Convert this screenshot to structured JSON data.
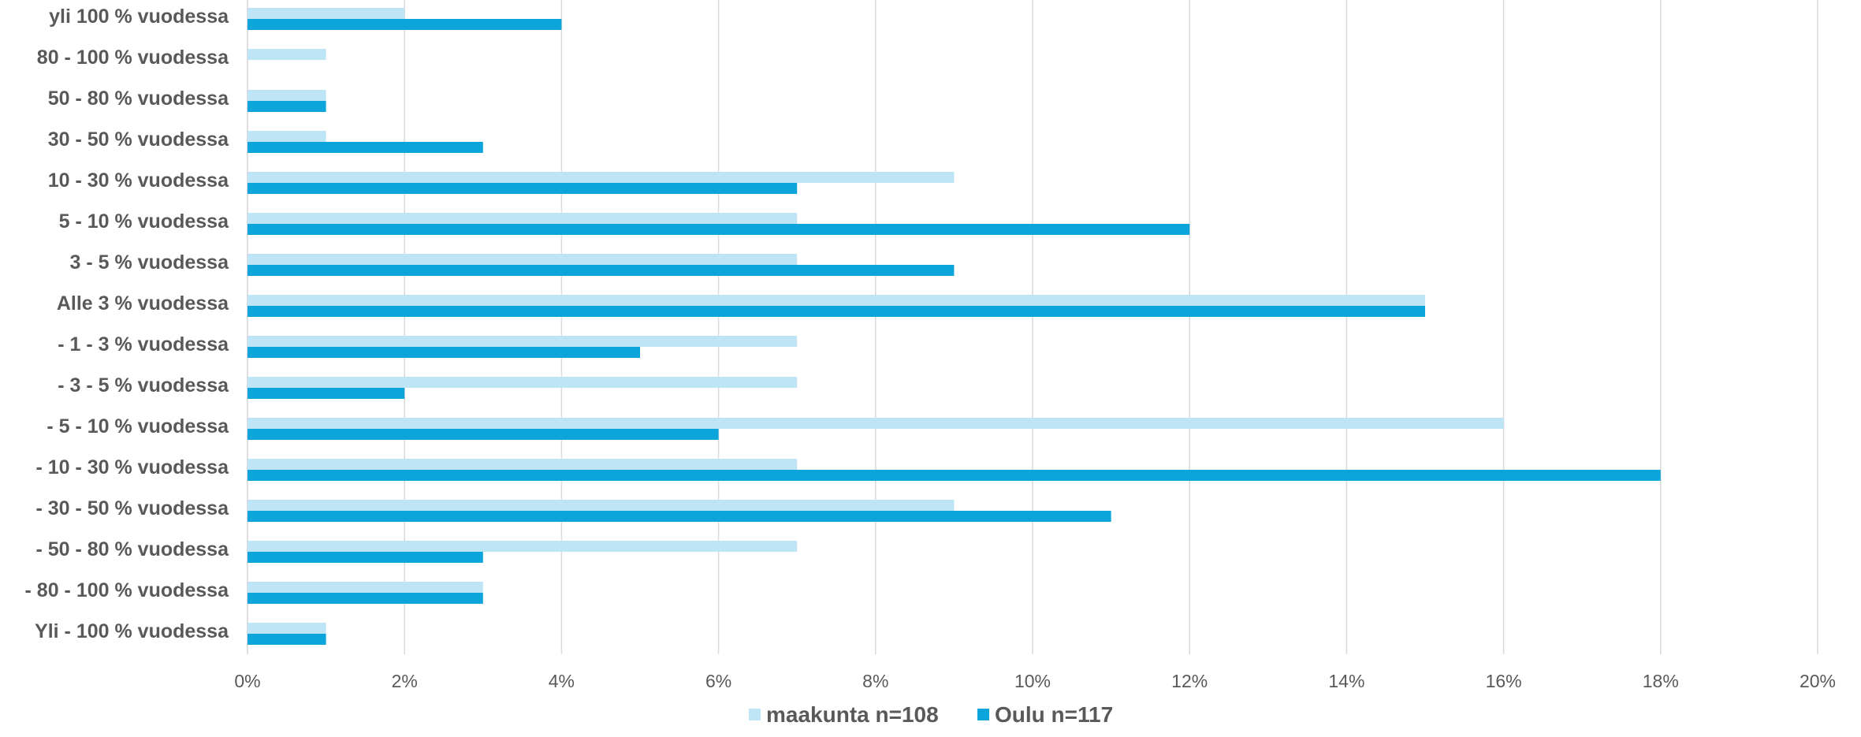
{
  "chart_data": {
    "type": "bar",
    "orientation": "horizontal",
    "categories": [
      "yli 100 % vuodessa",
      "80 - 100 % vuodessa",
      "50 - 80 % vuodessa",
      "30 - 50 % vuodessa",
      "10 - 30 % vuodessa",
      "5 - 10 % vuodessa",
      "3 - 5 % vuodessa",
      "Alle 3 % vuodessa",
      "- 1 - 3 % vuodessa",
      "- 3 - 5 % vuodessa",
      "- 5 - 10 % vuodessa",
      "- 10 - 30 % vuodessa",
      "- 30 - 50 % vuodessa",
      "- 50 - 80 % vuodessa",
      "- 80 - 100 % vuodessa",
      "Yli - 100 % vuodessa"
    ],
    "series": [
      {
        "name": "maakunta n=108",
        "color": "#bde5f6",
        "values": [
          2,
          1,
          1,
          1,
          9,
          7,
          7,
          15,
          7,
          7,
          16,
          7,
          9,
          7,
          3,
          1
        ]
      },
      {
        "name": "Oulu n=117",
        "color": "#0ba4db",
        "values": [
          4,
          0,
          1,
          3,
          7,
          12,
          9,
          15,
          5,
          2,
          6,
          18,
          11,
          3,
          3,
          1
        ]
      }
    ],
    "x_ticks": [
      "0%",
      "2%",
      "4%",
      "6%",
      "8%",
      "10%",
      "12%",
      "14%",
      "16%",
      "18%",
      "20%"
    ],
    "xlim": [
      0,
      20
    ],
    "unit": "%",
    "grid": "vertical",
    "legend_position": "bottom",
    "gridline_color": "#d9d9d9",
    "text_color": "#595959"
  }
}
